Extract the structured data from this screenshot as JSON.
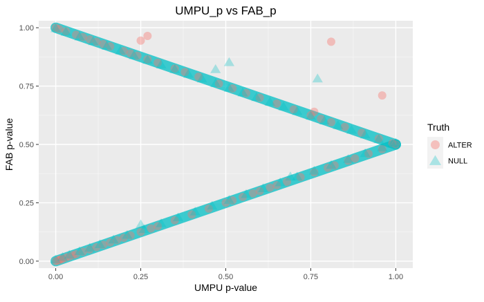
{
  "chart_data": {
    "type": "scatter",
    "title": "UMPU_p vs FAB_p",
    "xlabel": "UMPU p-value",
    "ylabel": "FAB p-value",
    "xlim": [
      -0.05,
      1.05
    ],
    "ylim": [
      -0.03,
      1.03
    ],
    "x_ticks": [
      {
        "value": 0,
        "label": "0.00"
      },
      {
        "value": 0.25,
        "label": "0.25"
      },
      {
        "value": 0.5,
        "label": "0.50"
      },
      {
        "value": 0.75,
        "label": "0.75"
      },
      {
        "value": 1,
        "label": "1.00"
      }
    ],
    "y_ticks": [
      {
        "value": 0,
        "label": "0.00"
      },
      {
        "value": 0.25,
        "label": "0.25"
      },
      {
        "value": 0.5,
        "label": "0.50"
      },
      {
        "value": 0.75,
        "label": "0.75"
      },
      {
        "value": 1,
        "label": "1.00"
      }
    ],
    "grid": true,
    "legend": {
      "title": "Truth",
      "position": "right",
      "entries": [
        {
          "label": "ALTER",
          "series": "ALTER"
        },
        {
          "label": "NULL",
          "series": "NULL"
        }
      ]
    },
    "series": [
      {
        "name": "ALTER",
        "color": "#F8766D",
        "marker": "circle",
        "points": [
          [
            0.0,
            0.0
          ],
          [
            0.005,
            0.0025
          ],
          [
            0.01,
            0.005
          ],
          [
            0.015,
            0.0075
          ],
          [
            0.02,
            0.01
          ],
          [
            0.03,
            0.015
          ],
          [
            0.04,
            0.02
          ],
          [
            0.05,
            0.025
          ],
          [
            0.06,
            0.03
          ],
          [
            0.08,
            0.04
          ],
          [
            0.1,
            0.05
          ],
          [
            0.12,
            0.06
          ],
          [
            0.14,
            0.07
          ],
          [
            0.16,
            0.08
          ],
          [
            0.18,
            0.09
          ],
          [
            0.2,
            0.1
          ],
          [
            0.22,
            0.11
          ],
          [
            0.25,
            0.125
          ],
          [
            0.28,
            0.14
          ],
          [
            0.3,
            0.15
          ],
          [
            0.35,
            0.175
          ],
          [
            0.4,
            0.2
          ],
          [
            0.45,
            0.225
          ],
          [
            0.5,
            0.25
          ],
          [
            0.52,
            0.26
          ],
          [
            0.55,
            0.275
          ],
          [
            0.58,
            0.29
          ],
          [
            0.6,
            0.3
          ],
          [
            0.63,
            0.315
          ],
          [
            0.65,
            0.325
          ],
          [
            0.68,
            0.34
          ],
          [
            0.72,
            0.36
          ],
          [
            0.76,
            0.38
          ],
          [
            0.8,
            0.4
          ],
          [
            0.82,
            0.41
          ],
          [
            0.86,
            0.43
          ],
          [
            0.88,
            0.44
          ],
          [
            0.92,
            0.46
          ],
          [
            0.96,
            0.48
          ],
          [
            1.0,
            0.5
          ],
          [
            0.0,
            1.0
          ],
          [
            0.01,
            0.995
          ],
          [
            0.03,
            0.985
          ],
          [
            0.06,
            0.97
          ],
          [
            0.08,
            0.96
          ],
          [
            0.1,
            0.95
          ],
          [
            0.12,
            0.94
          ],
          [
            0.14,
            0.93
          ],
          [
            0.16,
            0.92
          ],
          [
            0.2,
            0.9
          ],
          [
            0.22,
            0.89
          ],
          [
            0.24,
            0.88
          ],
          [
            0.27,
            0.865
          ],
          [
            0.3,
            0.85
          ],
          [
            0.35,
            0.825
          ],
          [
            0.38,
            0.81
          ],
          [
            0.42,
            0.79
          ],
          [
            0.48,
            0.76
          ],
          [
            0.52,
            0.74
          ],
          [
            0.56,
            0.72
          ],
          [
            0.6,
            0.7
          ],
          [
            0.65,
            0.675
          ],
          [
            0.7,
            0.65
          ],
          [
            0.75,
            0.625
          ],
          [
            0.78,
            0.61
          ],
          [
            0.81,
            0.595
          ],
          [
            0.85,
            0.575
          ],
          [
            0.9,
            0.55
          ],
          [
            0.95,
            0.525
          ],
          [
            0.99,
            0.505
          ],
          [
            0.25,
            0.945
          ],
          [
            0.27,
            0.965
          ],
          [
            0.81,
            0.94
          ],
          [
            0.96,
            0.71
          ],
          [
            0.76,
            0.64
          ]
        ]
      },
      {
        "name": "NULL",
        "color": "#00BFC4",
        "marker": "triangle",
        "points": [
          [
            0.0,
            0.005
          ],
          [
            0.02,
            0.015
          ],
          [
            0.04,
            0.025
          ],
          [
            0.07,
            0.04
          ],
          [
            0.1,
            0.055
          ],
          [
            0.13,
            0.07
          ],
          [
            0.17,
            0.09
          ],
          [
            0.21,
            0.11
          ],
          [
            0.26,
            0.135
          ],
          [
            0.31,
            0.16
          ],
          [
            0.36,
            0.185
          ],
          [
            0.41,
            0.21
          ],
          [
            0.46,
            0.235
          ],
          [
            0.51,
            0.26
          ],
          [
            0.56,
            0.285
          ],
          [
            0.61,
            0.31
          ],
          [
            0.66,
            0.335
          ],
          [
            0.71,
            0.36
          ],
          [
            0.76,
            0.385
          ],
          [
            0.81,
            0.41
          ],
          [
            0.86,
            0.435
          ],
          [
            0.91,
            0.46
          ],
          [
            0.96,
            0.485
          ],
          [
            1.0,
            0.505
          ],
          [
            0.0,
            0.995
          ],
          [
            0.03,
            0.98
          ],
          [
            0.07,
            0.96
          ],
          [
            0.11,
            0.94
          ],
          [
            0.15,
            0.92
          ],
          [
            0.19,
            0.9
          ],
          [
            0.23,
            0.88
          ],
          [
            0.27,
            0.86
          ],
          [
            0.31,
            0.84
          ],
          [
            0.35,
            0.82
          ],
          [
            0.39,
            0.8
          ],
          [
            0.43,
            0.78
          ],
          [
            0.47,
            0.76
          ],
          [
            0.51,
            0.74
          ],
          [
            0.55,
            0.72
          ],
          [
            0.59,
            0.7
          ],
          [
            0.63,
            0.68
          ],
          [
            0.67,
            0.66
          ],
          [
            0.71,
            0.64
          ],
          [
            0.75,
            0.62
          ],
          [
            0.79,
            0.6
          ],
          [
            0.83,
            0.58
          ],
          [
            0.87,
            0.56
          ],
          [
            0.91,
            0.54
          ],
          [
            0.95,
            0.52
          ],
          [
            0.99,
            0.5
          ],
          [
            0.25,
            0.155
          ],
          [
            0.47,
            0.82
          ],
          [
            0.51,
            0.85
          ],
          [
            0.77,
            0.78
          ],
          [
            0.69,
            0.36
          ]
        ]
      }
    ]
  }
}
